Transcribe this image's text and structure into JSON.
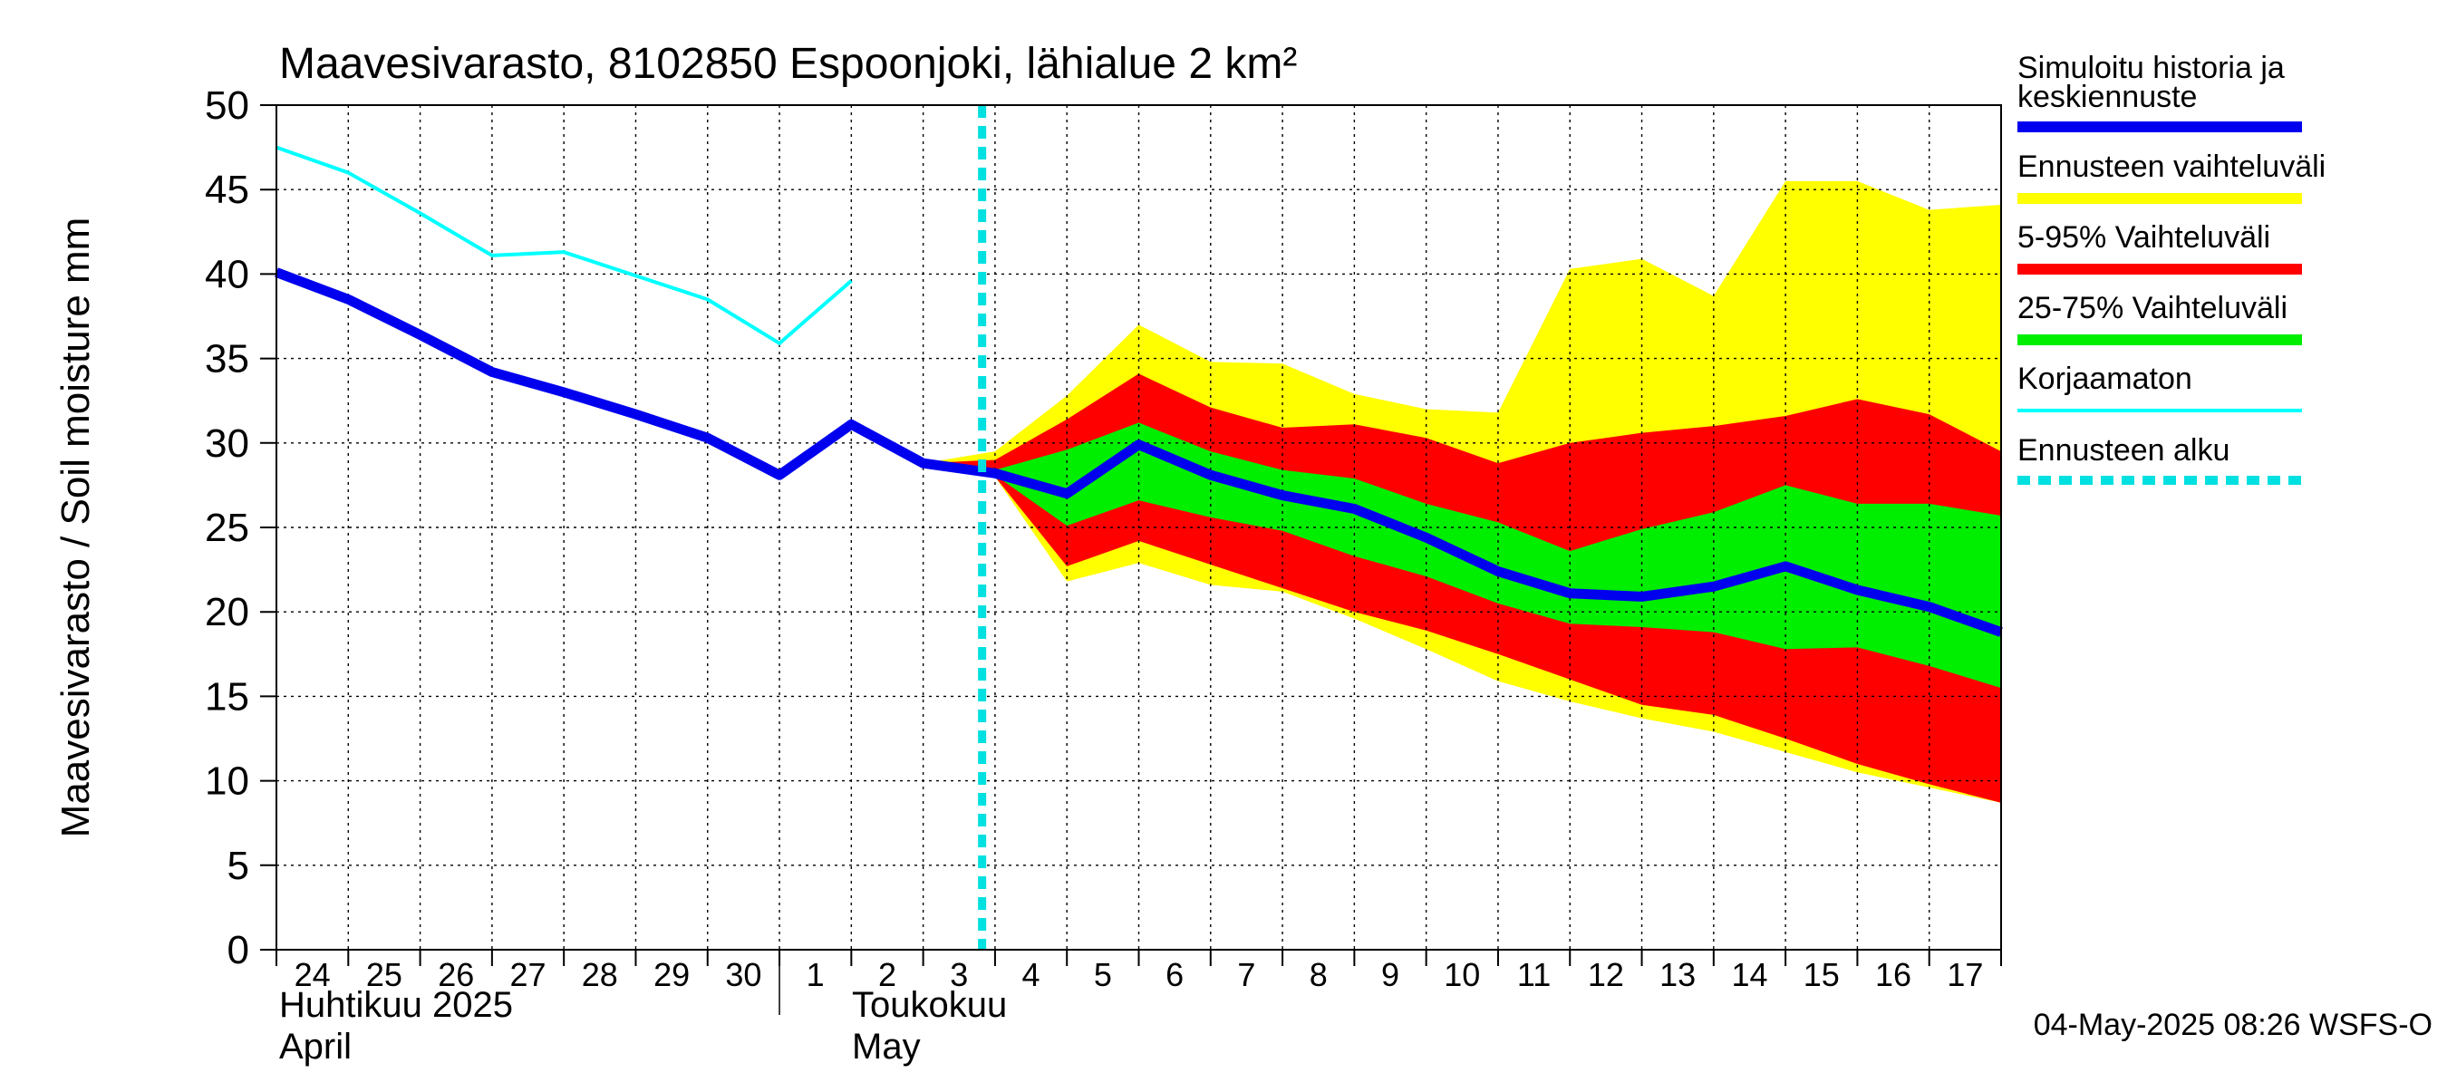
{
  "chart_data": {
    "type": "area",
    "title": "Maavesivarasto, 8102850 Espoonjoki, lähialue 2 km²",
    "ylabel": "Maavesivarasto / Soil moisture   mm",
    "xlabel": "",
    "ylim": [
      0,
      50
    ],
    "yticks": [
      0,
      5,
      10,
      15,
      20,
      25,
      30,
      35,
      40,
      45,
      50
    ],
    "grid": true,
    "x_range": [
      "2025-04-24",
      "2025-05-18"
    ],
    "day_labels": [
      "24",
      "25",
      "26",
      "27",
      "28",
      "29",
      "30",
      "1",
      "2",
      "3",
      "4",
      "5",
      "6",
      "7",
      "8",
      "9",
      "10",
      "11",
      "12",
      "13",
      "14",
      "15",
      "16",
      "17"
    ],
    "month_labels": {
      "april": {
        "fi": "Huhtikuu  2025",
        "en": "April"
      },
      "may": {
        "fi": "Toukokuu",
        "en": "May"
      }
    },
    "forecast_start": "2025-05-04",
    "timestamp": "04-May-2025 08:26 WSFS-O",
    "legend": [
      {
        "key": "median",
        "label": "Simuloitu historia ja keskiennuste",
        "color": "#0000ee"
      },
      {
        "key": "range",
        "label": "Ennusteen vaihteluväli",
        "color": "#ffff00"
      },
      {
        "key": "p5_95",
        "label": "5-95% Vaihteluväli",
        "color": "#ff0000"
      },
      {
        "key": "p25_75",
        "label": "25-75% Vaihteluväli",
        "color": "#00ee00"
      },
      {
        "key": "uncorrected",
        "label": "Korjaamaton",
        "color": "#00ffff"
      },
      {
        "key": "forecast_start",
        "label": "Ennusteen alku",
        "color": "#00e0e0"
      }
    ],
    "series": [
      {
        "key": "median",
        "x": [
          "2025-04-24",
          "2025-04-25",
          "2025-04-26",
          "2025-04-27",
          "2025-04-28",
          "2025-04-29",
          "2025-04-30",
          "2025-05-01",
          "2025-05-02",
          "2025-05-03",
          "2025-05-04",
          "2025-05-05",
          "2025-05-06",
          "2025-05-07",
          "2025-05-08",
          "2025-05-09",
          "2025-05-10",
          "2025-05-11",
          "2025-05-12",
          "2025-05-13",
          "2025-05-14",
          "2025-05-15",
          "2025-05-16",
          "2025-05-17",
          "2025-05-18"
        ],
        "values": [
          40.1,
          38.5,
          36.4,
          34.2,
          33.0,
          31.7,
          30.3,
          28.1,
          31.1,
          28.8,
          28.2,
          27.0,
          29.9,
          28.1,
          26.9,
          26.1,
          24.4,
          22.4,
          21.1,
          20.9,
          21.5,
          22.7,
          21.3,
          20.3,
          18.8
        ]
      },
      {
        "key": "uncorrected",
        "x": [
          "2025-04-24",
          "2025-04-25",
          "2025-04-26",
          "2025-04-27",
          "2025-04-28",
          "2025-04-29",
          "2025-04-30",
          "2025-05-01",
          "2025-05-02"
        ],
        "values": [
          47.5,
          46.0,
          43.6,
          41.1,
          41.3,
          39.9,
          38.5,
          35.9,
          39.6
        ]
      }
    ],
    "bands": {
      "x": [
        "2025-05-03",
        "2025-05-04",
        "2025-05-05",
        "2025-05-06",
        "2025-05-07",
        "2025-05-08",
        "2025-05-09",
        "2025-05-10",
        "2025-05-11",
        "2025-05-12",
        "2025-05-13",
        "2025-05-14",
        "2025-05-15",
        "2025-05-16",
        "2025-05-17",
        "2025-05-18"
      ],
      "range_upper": [
        28.8,
        29.5,
        32.8,
        37.0,
        34.8,
        34.7,
        32.9,
        32.0,
        31.8,
        40.3,
        40.9,
        38.7,
        45.5,
        45.5,
        43.8,
        44.1
      ],
      "range_lower": [
        28.8,
        28.0,
        21.8,
        22.9,
        21.6,
        21.2,
        19.6,
        17.8,
        15.9,
        14.7,
        13.7,
        12.9,
        11.7,
        10.5,
        9.6,
        8.7
      ],
      "p5_95_upper": [
        28.8,
        29.0,
        31.4,
        34.1,
        32.1,
        30.9,
        31.1,
        30.3,
        28.8,
        30.0,
        30.6,
        31.0,
        31.6,
        32.6,
        31.7,
        29.5
      ],
      "p5_95_lower": [
        28.8,
        28.0,
        22.7,
        24.2,
        22.8,
        21.4,
        20.0,
        18.9,
        17.5,
        16.0,
        14.5,
        13.9,
        12.5,
        11.0,
        9.8,
        8.7
      ],
      "p25_75_upper": [
        28.8,
        28.4,
        29.6,
        31.2,
        29.5,
        28.4,
        27.9,
        26.4,
        25.3,
        23.6,
        24.9,
        25.9,
        27.5,
        26.4,
        26.4,
        25.7
      ],
      "p25_75_lower": [
        28.8,
        28.1,
        25.1,
        26.6,
        25.6,
        24.8,
        23.3,
        22.1,
        20.5,
        19.3,
        19.1,
        18.8,
        17.8,
        17.9,
        16.8,
        15.5
      ]
    }
  }
}
